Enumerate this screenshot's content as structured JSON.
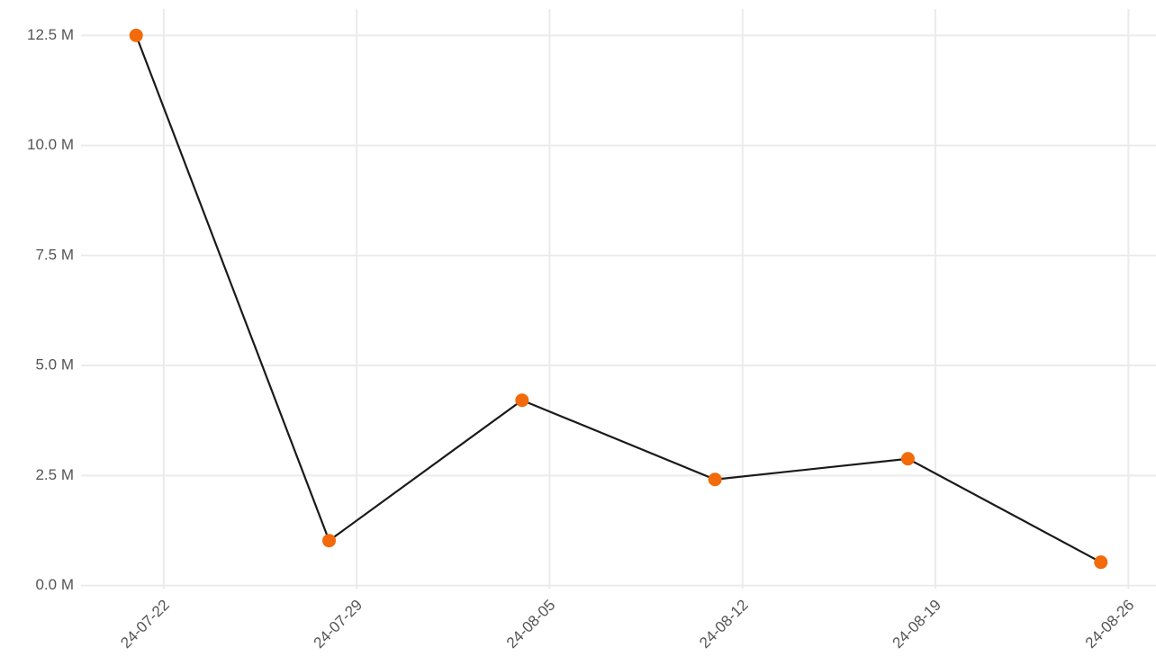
{
  "chart_data": {
    "type": "line",
    "x": [
      "24-07-21",
      "24-07-28",
      "24-08-04",
      "24-08-11",
      "24-08-18",
      "24-08-25"
    ],
    "series": [
      {
        "values": [
          12500000,
          1020000,
          4210000,
          2410000,
          2880000,
          530000
        ],
        "color": "#1a1a1a",
        "marker_color": "#f26a0a"
      }
    ],
    "xlim": [
      "24-07-19",
      "24-08-27"
    ],
    "xticks": [
      "24-07-22",
      "24-07-29",
      "24-08-05",
      "24-08-12",
      "24-08-19",
      "24-08-26"
    ],
    "ylim": [
      -70000,
      13100000
    ],
    "yticks": [
      {
        "value": 0,
        "label": "0.0 M"
      },
      {
        "value": 2500000,
        "label": "2.5 M"
      },
      {
        "value": 5000000,
        "label": "5.0 M"
      },
      {
        "value": 7500000,
        "label": "7.5 M"
      },
      {
        "value": 10000000,
        "label": "10.0 M"
      },
      {
        "value": 12500000,
        "label": "12.5 M"
      }
    ],
    "grid": true
  }
}
